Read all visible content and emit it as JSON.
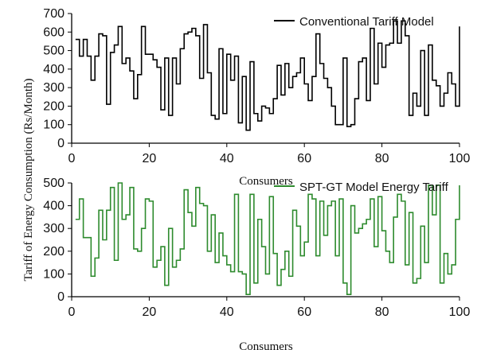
{
  "chart_data": [
    {
      "type": "line",
      "step": true,
      "ylabel": "Tariff of Energy Consumption (Rs/Month)",
      "xlabel": "Consumers",
      "xlim": [
        0,
        100
      ],
      "ylim": [
        0,
        700
      ],
      "xticks": [
        0,
        20,
        40,
        60,
        80,
        100
      ],
      "yticks": [
        0,
        100,
        200,
        300,
        400,
        500,
        600,
        700
      ],
      "legend_position": "top-right",
      "series": [
        {
          "name": "Conventional Tariff Model",
          "color": "#000000",
          "x": [
            1,
            2,
            3,
            4,
            5,
            6,
            7,
            8,
            9,
            10,
            11,
            12,
            13,
            14,
            15,
            16,
            17,
            18,
            19,
            20,
            21,
            22,
            23,
            24,
            25,
            26,
            27,
            28,
            29,
            30,
            31,
            32,
            33,
            34,
            35,
            36,
            37,
            38,
            39,
            40,
            41,
            42,
            43,
            44,
            45,
            46,
            47,
            48,
            49,
            50,
            51,
            52,
            53,
            54,
            55,
            56,
            57,
            58,
            59,
            60,
            61,
            62,
            63,
            64,
            65,
            66,
            67,
            68,
            69,
            70,
            71,
            72,
            73,
            74,
            75,
            76,
            77,
            78,
            79,
            80,
            81,
            82,
            83,
            84,
            85,
            86,
            87,
            88,
            89,
            90,
            91,
            92,
            93,
            94,
            95,
            96,
            97,
            98,
            99,
            100
          ],
          "values": [
            560,
            470,
            560,
            470,
            340,
            470,
            590,
            580,
            210,
            490,
            530,
            630,
            430,
            460,
            390,
            240,
            370,
            630,
            480,
            480,
            450,
            410,
            180,
            460,
            150,
            460,
            320,
            510,
            590,
            600,
            620,
            580,
            350,
            640,
            380,
            150,
            130,
            510,
            160,
            480,
            340,
            470,
            110,
            360,
            70,
            440,
            160,
            120,
            200,
            190,
            160,
            240,
            420,
            260,
            430,
            300,
            360,
            380,
            460,
            320,
            230,
            360,
            590,
            430,
            350,
            300,
            200,
            100,
            100,
            460,
            90,
            100,
            240,
            440,
            460,
            230,
            620,
            320,
            540,
            410,
            530,
            540,
            660,
            540,
            660,
            580,
            150,
            270,
            200,
            500,
            150,
            530,
            340,
            310,
            200,
            270,
            380,
            320,
            200,
            630
          ]
        },
        {
          "name": "SPT-GT Model Energy Tariff",
          "color": "#2e8b2e",
          "x": [
            1,
            2,
            3,
            4,
            5,
            6,
            7,
            8,
            9,
            10,
            11,
            12,
            13,
            14,
            15,
            16,
            17,
            18,
            19,
            20,
            21,
            22,
            23,
            24,
            25,
            26,
            27,
            28,
            29,
            30,
            31,
            32,
            33,
            34,
            35,
            36,
            37,
            38,
            39,
            40,
            41,
            42,
            43,
            44,
            45,
            46,
            47,
            48,
            49,
            50,
            51,
            52,
            53,
            54,
            55,
            56,
            57,
            58,
            59,
            60,
            61,
            62,
            63,
            64,
            65,
            66,
            67,
            68,
            69,
            70,
            71,
            72,
            73,
            74,
            75,
            76,
            77,
            78,
            79,
            80,
            81,
            82,
            83,
            84,
            85,
            86,
            87,
            88,
            89,
            90,
            91,
            92,
            93,
            94,
            95,
            96,
            97,
            98,
            99,
            100
          ],
          "values": [
            340,
            430,
            260,
            260,
            90,
            170,
            380,
            250,
            380,
            480,
            160,
            500,
            340,
            360,
            480,
            210,
            200,
            300,
            430,
            420,
            130,
            160,
            220,
            50,
            300,
            130,
            160,
            210,
            470,
            370,
            310,
            480,
            410,
            400,
            200,
            360,
            150,
            280,
            180,
            140,
            110,
            450,
            110,
            100,
            10,
            450,
            60,
            340,
            220,
            100,
            440,
            190,
            50,
            120,
            200,
            90,
            380,
            310,
            180,
            240,
            450,
            430,
            180,
            420,
            270,
            400,
            420,
            180,
            430,
            60,
            10,
            400,
            280,
            300,
            320,
            340,
            430,
            220,
            440,
            290,
            200,
            150,
            350,
            450,
            420,
            140,
            370,
            60,
            80,
            310,
            150,
            490,
            360,
            490,
            60,
            190,
            100,
            140,
            340,
            490
          ]
        }
      ]
    }
  ]
}
